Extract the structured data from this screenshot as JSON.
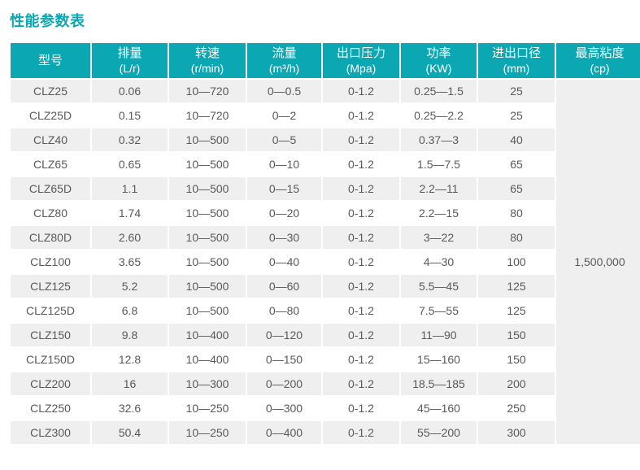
{
  "title": "性能参数表",
  "colors": {
    "accent_teal": "#0ba7b3",
    "row_stripe": "#efefef",
    "cell_text": "#58595b",
    "header_text": "#ffffff"
  },
  "table": {
    "columns": [
      {
        "key": "model",
        "name": "型号",
        "unit": ""
      },
      {
        "key": "displacement",
        "name": "排量",
        "unit": "(L/r)"
      },
      {
        "key": "speed",
        "name": "转速",
        "unit": "(r/min)"
      },
      {
        "key": "flow",
        "name": "流量",
        "unit": "(m³/h)"
      },
      {
        "key": "outlet-pressure",
        "name": "出口压力",
        "unit": "(Mpa)"
      },
      {
        "key": "power",
        "name": "功率",
        "unit": "(KW)"
      },
      {
        "key": "port-diameter",
        "name": "进出口径",
        "unit": "(mm)"
      },
      {
        "key": "max-viscosity",
        "name": "最高粘度",
        "unit": "(cp)"
      }
    ],
    "max_viscosity_value": "1,500,000",
    "rows": [
      [
        "CLZ25",
        "0.06",
        "10—720",
        "0—0.5",
        "0-1.2",
        "0.25—1.5",
        "25"
      ],
      [
        "CLZ25D",
        "0.15",
        "10—720",
        "0—2",
        "0-1.2",
        "0.25—2.2",
        "25"
      ],
      [
        "CLZ40",
        "0.32",
        "10—500",
        "0—5",
        "0-1.2",
        "0.37—3",
        "40"
      ],
      [
        "CLZ65",
        "0.65",
        "10—500",
        "0—10",
        "0-1.2",
        "1.5—7.5",
        "65"
      ],
      [
        "CLZ65D",
        "1.1",
        "10—500",
        "0—15",
        "0-1.2",
        "2.2—11",
        "65"
      ],
      [
        "CLZ80",
        "1.74",
        "10—500",
        "0—20",
        "0-1.2",
        "2.2—15",
        "80"
      ],
      [
        "CLZ80D",
        "2.60",
        "10—500",
        "0—30",
        "0-1.2",
        "3—22",
        "80"
      ],
      [
        "CLZ100",
        "3.65",
        "10—500",
        "0—40",
        "0-1.2",
        "4—30",
        "100"
      ],
      [
        "CLZ125",
        "5.2",
        "10—500",
        "0—60",
        "0-1.2",
        "5.5—45",
        "125"
      ],
      [
        "CLZ125D",
        "6.8",
        "10—500",
        "0—80",
        "0-1.2",
        "7.5—55",
        "125"
      ],
      [
        "CLZ150",
        "9.8",
        "10—400",
        "0—120",
        "0-1.2",
        "11—90",
        "150"
      ],
      [
        "CLZ150D",
        "12.8",
        "10—400",
        "0—150",
        "0-1.2",
        "15—160",
        "150"
      ],
      [
        "CLZ200",
        "16",
        "10—300",
        "0—200",
        "0-1.2",
        "18.5—185",
        "200"
      ],
      [
        "CLZ250",
        "32.6",
        "10—250",
        "0—300",
        "0-1.2",
        "45—160",
        "250"
      ],
      [
        "CLZ300",
        "50.4",
        "10—250",
        "0—400",
        "0-1.2",
        "55—200",
        "300"
      ]
    ]
  }
}
